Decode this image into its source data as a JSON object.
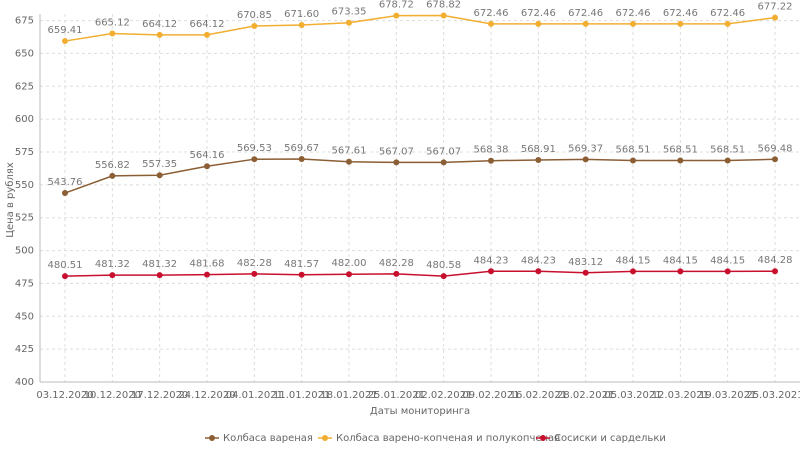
{
  "chart_data": {
    "type": "line",
    "x_label": "Даты мониторинга",
    "y_label": "Цена в рублях",
    "categories": [
      "03.12.2020",
      "10.12.2020",
      "17.12.2020",
      "24.12.2020",
      "04.01.2021",
      "11.01.2021",
      "18.01.2021",
      "25.01.2021",
      "02.02.2021",
      "09.02.2021",
      "16.02.2021",
      "28.02.2021",
      "05.03.2021",
      "12.03.2021",
      "19.03.2021",
      "25.03.2021"
    ],
    "series": [
      {
        "name": "Колбаса вареная",
        "color": "#8b5e34",
        "values": [
          543.76,
          556.82,
          557.35,
          564.16,
          569.53,
          569.67,
          567.61,
          567.07,
          567.07,
          568.38,
          568.91,
          569.37,
          568.51,
          568.51,
          568.51,
          569.48
        ],
        "value_labels": [
          "543.76",
          "556.82",
          "557.35",
          "564.16",
          "569.53",
          "569.67",
          "567.61",
          "567.07",
          "567.07",
          "568.38",
          "568.91",
          "569.37",
          "568.51",
          "568.51",
          "568.51",
          "569.48"
        ]
      },
      {
        "name": "Колбаса варено-копченая и полукопченая",
        "color": "#f2ae30",
        "values": [
          659.41,
          665.12,
          664.12,
          664.12,
          670.85,
          671.6,
          673.35,
          678.72,
          678.82,
          672.46,
          672.46,
          672.46,
          672.46,
          672.46,
          672.46,
          677.22
        ],
        "value_labels": [
          "659.41",
          "665.12",
          "664.12",
          "664.12",
          "670.85",
          "671.60",
          "673.35",
          "678.72",
          "678.82",
          "672.46",
          "672.46",
          "672.46",
          "672.46",
          "672.46",
          "672.46",
          "677.22"
        ]
      },
      {
        "name": "Сосиски и сардельки",
        "color": "#c8102e",
        "values": [
          480.51,
          481.32,
          481.32,
          481.68,
          482.28,
          481.57,
          482.0,
          482.28,
          480.58,
          484.23,
          484.23,
          483.12,
          484.15,
          484.15,
          484.15,
          484.28
        ],
        "value_labels": [
          "480.51",
          "481.32",
          "481.32",
          "481.68",
          "482.28",
          "481.57",
          "482.00",
          "482.28",
          "480.58",
          "484.23",
          "484.23",
          "483.12",
          "484.15",
          "484.15",
          "484.15",
          "484.28"
        ]
      }
    ],
    "ylim": [
      400,
      680
    ],
    "yticks": [
      400,
      425,
      450,
      475,
      500,
      525,
      550,
      575,
      600,
      625,
      650,
      675
    ],
    "grid": true,
    "legend": "bottom"
  }
}
